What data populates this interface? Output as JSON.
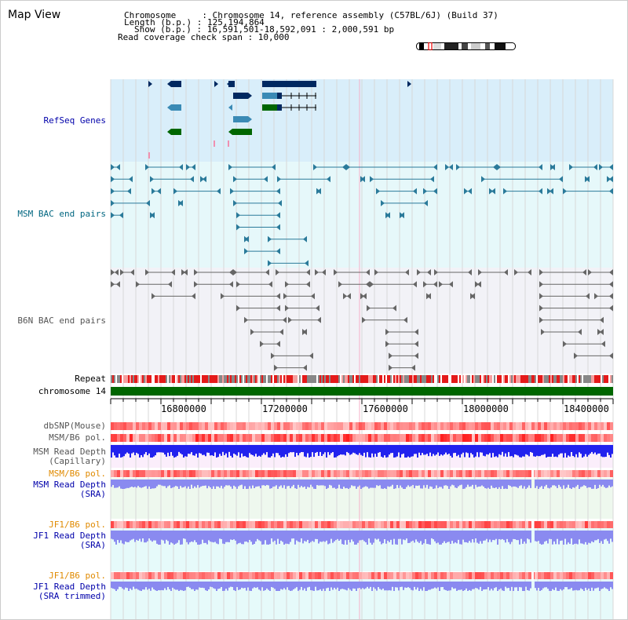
{
  "title": "Map View",
  "info": {
    "line1": "Chromosome     : Chromosome 14, reference assembly (C57BL/6J) (Build 37)",
    "line2": "Length (b.p.) : 125,194,864",
    "line3": "Show (b.p.) : 16,591,501-18,592,091 : 2,000,591 bp",
    "line4": "Read coverage check span : 10,000"
  },
  "tracks": {
    "refseq": "RefSeq Genes",
    "msm_bac": "MSM BAC end pairs",
    "b6n_bac": "B6N BAC end pairs",
    "repeat": "Repeat",
    "chromosome": "chromosome 14",
    "dbsnp": "dbSNP(Mouse)",
    "msm_b6_pol": "MSM/B6 pol.",
    "msm_depth_cap": "MSM Read Depth\n(Capillary)",
    "msm_b6_pol2": "MSM/B6 pol.",
    "msm_depth_sra": "MSM Read Depth\n(SRA)",
    "jf1_b6_pol": "JF1/B6 pol.",
    "jf1_depth_sra": "JF1 Read Depth\n(SRA)",
    "jf1_b6_pol2": "JF1/B6 pol.",
    "jf1_depth_trim": "JF1 Read Depth\n(SRA trimmed)"
  },
  "axis": {
    "ticks": [
      "16800000",
      "17200000",
      "17600000",
      "18000000",
      "18400000"
    ]
  },
  "colors": {
    "refseq_label": "#0000aa",
    "msm_bac_label": "#006680",
    "b6n_bac_label": "#555555",
    "orange_label": "#e08a00",
    "blue_label": "#0000aa",
    "gene_dark": "#002860",
    "gene_mid": "#3a8ab5",
    "gene_green": "#006600",
    "refseq_bg": "#d9eefa",
    "msm_bg": "#e6f8fa",
    "b6n_bg": "#f2f2f7",
    "depth_cap": "#2222ee",
    "depth_sra": "#8a8af0",
    "chromosome_bar": "#006600"
  }
}
